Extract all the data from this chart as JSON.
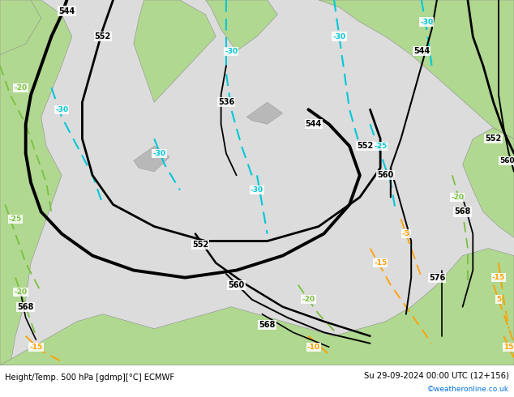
{
  "title_left": "Height/Temp. 500 hPa [gdmp][°C] ECMWF",
  "title_right": "Su 29-09-2024 00:00 UTC (12+156)",
  "credit": "©weatheronline.co.uk",
  "fig_width": 6.34,
  "fig_height": 4.9,
  "dpi": 100,
  "bg_color": "#c8c8c8",
  "land_green": "#b0d890",
  "sea_color": "#dcdcdc",
  "black": "#000000",
  "cyan": "#00c8d8",
  "green_temp": "#78c040",
  "orange": "#ffa000",
  "font_size_small": 6.5,
  "font_size_label": 7.0,
  "font_size_title": 7.2,
  "font_size_credit": 6.5,
  "white": "#ffffff"
}
